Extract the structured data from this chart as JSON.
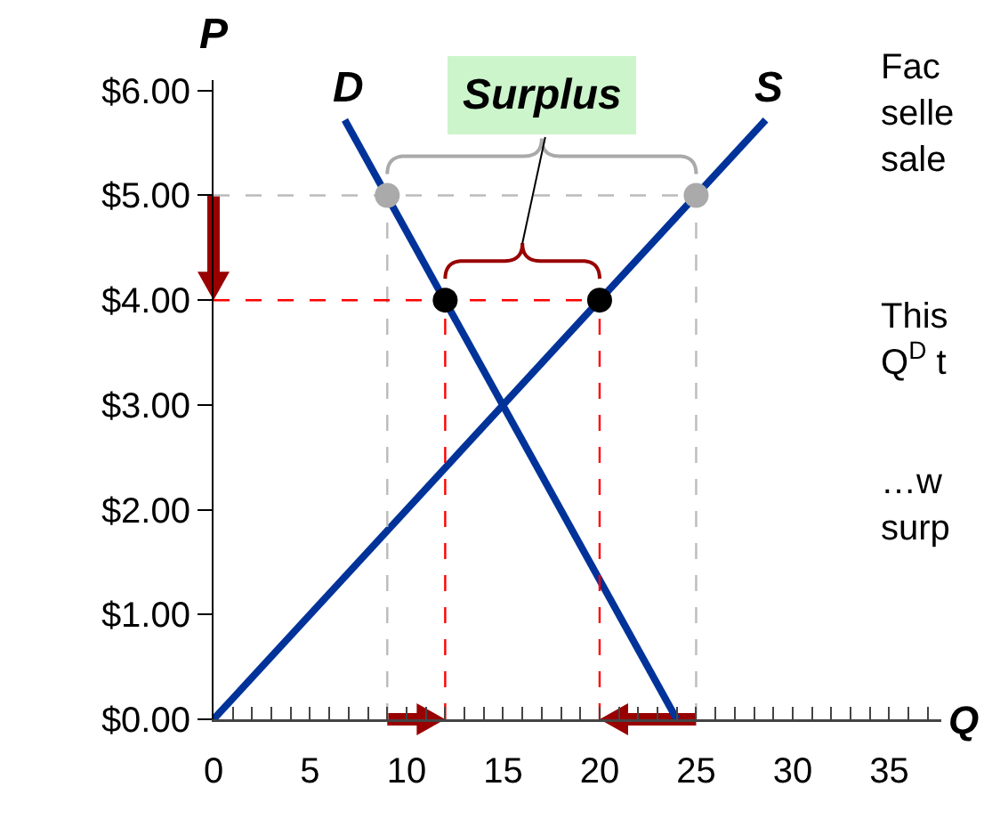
{
  "chart_data": {
    "type": "line",
    "xlabel": "Q",
    "ylabel": "P",
    "xlim": [
      0,
      37.7
    ],
    "ylim": [
      0,
      6.1
    ],
    "xticks": [
      0,
      {
        "value": 1,
        "label": null
      },
      {
        "value": 2,
        "label": null
      },
      {
        "value": 3,
        "label": null
      },
      {
        "value": 4,
        "label": null
      },
      5,
      {
        "value": 6,
        "label": null
      },
      {
        "value": 7,
        "label": null
      },
      {
        "value": 8,
        "label": null
      },
      {
        "value": 9,
        "label": null
      },
      10,
      {
        "value": 11,
        "label": null
      },
      {
        "value": 12,
        "label": null
      },
      {
        "value": 13,
        "label": null
      },
      {
        "value": 14,
        "label": null
      },
      15,
      {
        "value": 16,
        "label": null
      },
      {
        "value": 17,
        "label": null
      },
      {
        "value": 18,
        "label": null
      },
      {
        "value": 19,
        "label": null
      },
      20,
      {
        "value": 21,
        "label": null
      },
      {
        "value": 22,
        "label": null
      },
      {
        "value": 23,
        "label": null
      },
      {
        "value": 24,
        "label": null
      },
      25,
      {
        "value": 26,
        "label": null
      },
      {
        "value": 27,
        "label": null
      },
      {
        "value": 28,
        "label": null
      },
      {
        "value": 29,
        "label": null
      },
      30,
      {
        "value": 31,
        "label": null
      },
      {
        "value": 32,
        "label": null
      },
      {
        "value": 33,
        "label": null
      },
      {
        "value": 34,
        "label": null
      },
      35,
      {
        "value": 36,
        "label": null
      },
      {
        "value": 37,
        "label": null
      }
    ],
    "yticks": [
      {
        "value": 0,
        "label": "$0.00"
      },
      {
        "value": 1,
        "label": "$1.00"
      },
      {
        "value": 2,
        "label": "$2.00"
      },
      {
        "value": 3,
        "label": "$3.00"
      },
      {
        "value": 4,
        "label": "$4.00"
      },
      {
        "value": 5,
        "label": "$5.00"
      },
      {
        "value": 6,
        "label": "$6.00"
      }
    ],
    "grid": false,
    "legend": false,
    "marker": "none",
    "line_style": "solid",
    "series": [
      {
        "name": "D",
        "color": "#003399",
        "x": [
          6.8,
          24
        ],
        "values": [
          5.72,
          0
        ]
      },
      {
        "name": "S",
        "color": "#003399",
        "x": [
          0,
          28.6
        ],
        "values": [
          0,
          5.72
        ]
      },
      {
        "color": "#bbbbbb",
        "line_style": "dashed",
        "x": [
          0,
          25
        ],
        "values": [
          5,
          5
        ]
      },
      {
        "color": "#bbbbbb",
        "line_style": "dashed",
        "x": [
          9,
          9
        ],
        "values": [
          0,
          5
        ]
      },
      {
        "color": "#bbbbbb",
        "line_style": "dashed",
        "x": [
          25,
          25
        ],
        "values": [
          0,
          5
        ]
      },
      {
        "color": "#ff0000",
        "line_style": "dashed",
        "x": [
          0,
          20
        ],
        "values": [
          4,
          4
        ]
      },
      {
        "color": "#ff0000",
        "line_style": "dashed",
        "x": [
          12,
          12
        ],
        "values": [
          0,
          4
        ]
      },
      {
        "color": "#ff0000",
        "line_style": "dashed",
        "x": [
          20,
          20
        ],
        "values": [
          0,
          4
        ]
      },
      {
        "type": "scatter",
        "marker": "circle",
        "color": "#aaaaaa",
        "x": [
          9,
          25
        ],
        "values": [
          5,
          5
        ]
      },
      {
        "type": "scatter",
        "marker": "circle",
        "color": "#000000",
        "x": [
          12,
          20
        ],
        "values": [
          4,
          4
        ]
      }
    ],
    "annotations": [
      "Surplus",
      "Fac\nselle\nsale",
      "This\nQ$^{D}$ t",
      "…w\nsurp"
    ]
  }
}
